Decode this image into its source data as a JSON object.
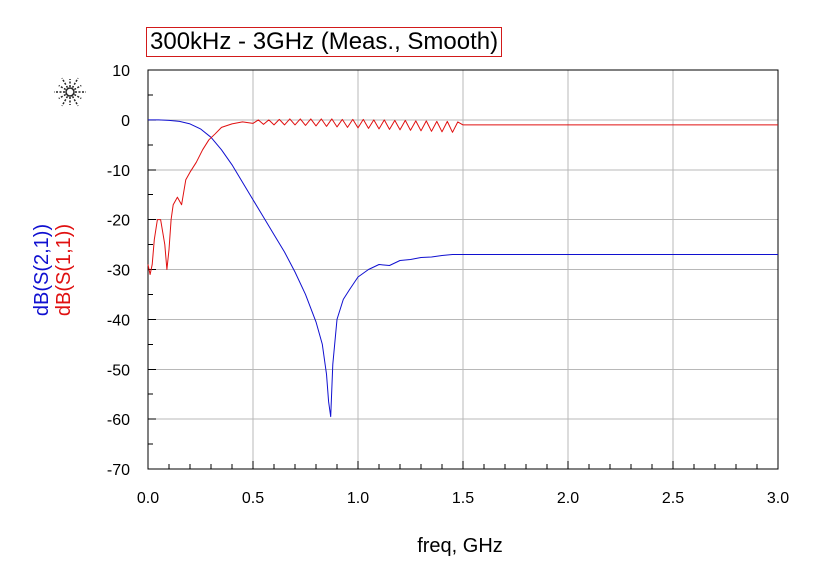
{
  "logo": {
    "icon": "starburst-logo-icon"
  },
  "chart_data": {
    "type": "line",
    "title": "300kHz - 3GHz (Meas., Smooth)",
    "xlabel": "freq, GHz",
    "ylabels": [
      {
        "text": "dB(S(2,1))",
        "color": "#1010d0"
      },
      {
        "text": "dB(S(1,1))",
        "color": "#e01010"
      }
    ],
    "xlim": [
      0.0,
      3.0
    ],
    "ylim": [
      -70,
      10
    ],
    "xticks": [
      "0.0",
      "0.5",
      "1.0",
      "1.5",
      "2.0",
      "2.5",
      "3.0"
    ],
    "xtick_values": [
      0,
      0.5,
      1.0,
      1.5,
      2.0,
      2.5,
      3.0
    ],
    "yticks": [
      "10",
      "0",
      "-10",
      "-20",
      "-30",
      "-40",
      "-50",
      "-60",
      "-70"
    ],
    "ytick_values": [
      10,
      0,
      -10,
      -20,
      -30,
      -40,
      -50,
      -60,
      -70
    ],
    "grid": true,
    "series": [
      {
        "name": "dB(S(2,1))",
        "color": "#1010d0",
        "x": [
          0.0,
          0.05,
          0.1,
          0.15,
          0.2,
          0.25,
          0.3,
          0.35,
          0.4,
          0.45,
          0.5,
          0.55,
          0.6,
          0.65,
          0.7,
          0.75,
          0.8,
          0.83,
          0.85,
          0.86,
          0.87,
          0.88,
          0.9,
          0.93,
          0.96,
          1.0,
          1.05,
          1.1,
          1.15,
          1.2,
          1.25,
          1.3,
          1.35,
          1.4,
          1.45,
          1.5,
          2.0,
          2.5,
          3.0
        ],
        "y": [
          0,
          0,
          -0.1,
          -0.3,
          -0.8,
          -1.8,
          -3.5,
          -6.0,
          -9.0,
          -12.5,
          -16.0,
          -19.5,
          -23.0,
          -26.5,
          -30.5,
          -35.0,
          -40.5,
          -45.0,
          -51.0,
          -56.5,
          -59.5,
          -49.0,
          -40.0,
          -36.0,
          -34.0,
          -31.5,
          -30.0,
          -29.0,
          -29.2,
          -28.2,
          -28.0,
          -27.6,
          -27.5,
          -27.2,
          -27.0,
          -27.0,
          -27.0,
          -27.0,
          -27.0
        ]
      },
      {
        "name": "dB(S(1,1))",
        "color": "#e01010",
        "x": [
          0.0,
          0.01,
          0.02,
          0.03,
          0.045,
          0.06,
          0.08,
          0.09,
          0.1,
          0.11,
          0.12,
          0.14,
          0.16,
          0.18,
          0.2,
          0.23,
          0.26,
          0.29,
          0.32,
          0.35,
          0.4,
          0.45,
          0.5,
          0.525,
          0.55,
          0.575,
          0.6,
          0.625,
          0.65,
          0.675,
          0.7,
          0.725,
          0.75,
          0.775,
          0.8,
          0.825,
          0.85,
          0.875,
          0.9,
          0.925,
          0.95,
          0.975,
          1.0,
          1.025,
          1.05,
          1.075,
          1.1,
          1.125,
          1.15,
          1.175,
          1.2,
          1.225,
          1.25,
          1.275,
          1.3,
          1.325,
          1.35,
          1.375,
          1.4,
          1.425,
          1.45,
          1.475,
          1.5,
          2.0,
          2.5,
          3.0
        ],
        "y": [
          -29,
          -31,
          -29,
          -24,
          -20,
          -20,
          -25,
          -30,
          -26,
          -20,
          -17,
          -15.5,
          -17,
          -12,
          -10.5,
          -8.5,
          -6.0,
          -4.0,
          -2.8,
          -1.5,
          -0.8,
          -0.4,
          -0.7,
          0.0,
          -0.9,
          0.0,
          -1.0,
          0.1,
          -1.0,
          0.2,
          -1.0,
          0.2,
          -1.1,
          0.2,
          -1.2,
          0.2,
          -1.3,
          0.2,
          -1.4,
          0.1,
          -1.5,
          0.1,
          -1.6,
          0.1,
          -1.7,
          0.0,
          -1.8,
          0.0,
          -1.9,
          -0.1,
          -2.0,
          -0.1,
          -2.1,
          -0.2,
          -2.2,
          -0.2,
          -2.3,
          -0.3,
          -2.4,
          -0.3,
          -2.5,
          -0.4,
          -1.0,
          -1.0,
          -1.0,
          -1.0
        ]
      }
    ]
  }
}
